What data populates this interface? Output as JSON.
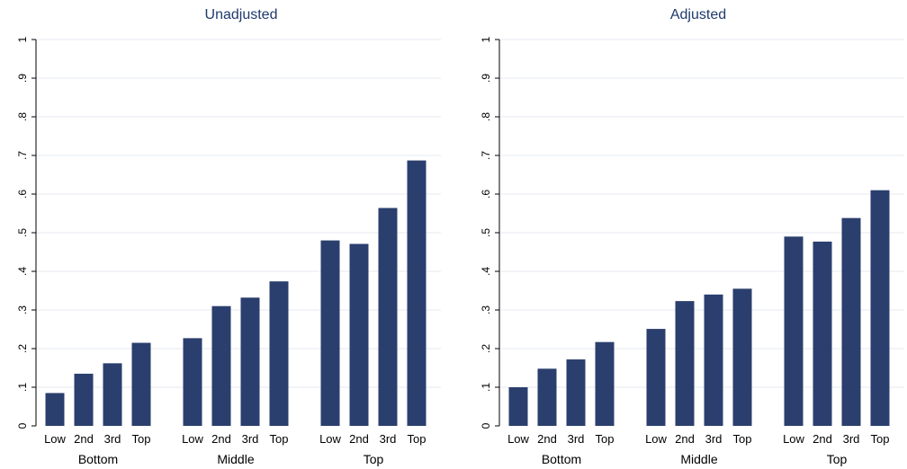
{
  "colors": {
    "bar": "#2b3f6e",
    "grid": "#e6e8f0",
    "axis": "#000000",
    "text": "#000000",
    "title": "#1f3a6d"
  },
  "chart_data": [
    {
      "type": "bar",
      "title": "Unadjusted",
      "ylim": [
        0,
        1
      ],
      "yticks": [
        "0",
        ".1",
        ".2",
        ".3",
        ".4",
        ".5",
        ".6",
        ".7",
        ".8",
        ".9",
        "1"
      ],
      "grid": true,
      "groups": [
        {
          "label": "Bottom",
          "categories": [
            "Low",
            "2nd",
            "3rd",
            "Top"
          ],
          "values": [
            0.085,
            0.135,
            0.162,
            0.215
          ]
        },
        {
          "label": "Middle",
          "categories": [
            "Low",
            "2nd",
            "3rd",
            "Top"
          ],
          "values": [
            0.227,
            0.31,
            0.332,
            0.374
          ]
        },
        {
          "label": "Top",
          "categories": [
            "Low",
            "2nd",
            "3rd",
            "Top"
          ],
          "values": [
            0.48,
            0.471,
            0.564,
            0.687
          ]
        }
      ]
    },
    {
      "type": "bar",
      "title": "Adjusted",
      "ylim": [
        0,
        1
      ],
      "yticks": [
        "0",
        ".1",
        ".2",
        ".3",
        ".4",
        ".5",
        ".6",
        ".7",
        ".8",
        ".9",
        "1"
      ],
      "grid": true,
      "groups": [
        {
          "label": "Bottom",
          "categories": [
            "Low",
            "2nd",
            "3rd",
            "Top"
          ],
          "values": [
            0.1,
            0.148,
            0.172,
            0.217
          ]
        },
        {
          "label": "Middle",
          "categories": [
            "Low",
            "2nd",
            "3rd",
            "Top"
          ],
          "values": [
            0.251,
            0.323,
            0.34,
            0.355
          ]
        },
        {
          "label": "Top",
          "categories": [
            "Low",
            "2nd",
            "3rd",
            "Top"
          ],
          "values": [
            0.49,
            0.477,
            0.538,
            0.61
          ]
        }
      ]
    }
  ]
}
